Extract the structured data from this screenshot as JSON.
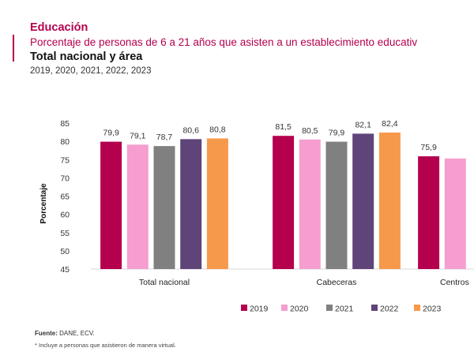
{
  "header": {
    "section": "Educación",
    "title": "Porcentaje de personas de 6 a 21 años que asisten a un establecimiento educativ",
    "subtitle": "Total nacional y área",
    "years": "2019, 2020, 2021, 2022, 2023"
  },
  "chart_data": {
    "type": "bar",
    "ylabel": "Porcentaje",
    "ylim": [
      45,
      85
    ],
    "yticks": [
      "45",
      "50",
      "55",
      "60",
      "65",
      "70",
      "75",
      "80",
      "85"
    ],
    "grid": false,
    "legend_position": "bottom-right",
    "categories": [
      "Total nacional",
      "Cabeceras",
      "Centros"
    ],
    "series": [
      {
        "name": "2019",
        "color": "#b5004e",
        "values": [
          79.9,
          81.5,
          75.9
        ],
        "labels": [
          "79,9",
          "81,5",
          "75,9"
        ]
      },
      {
        "name": "2020",
        "color": "#f59ecf",
        "values": [
          79.1,
          80.5,
          75.3
        ],
        "labels": [
          "79,1",
          "80,5",
          null
        ]
      },
      {
        "name": "2021",
        "color": "#808080",
        "values": [
          78.7,
          79.9,
          null
        ],
        "labels": [
          "78,7",
          "79,9",
          null
        ]
      },
      {
        "name": "2022",
        "color": "#5e4479",
        "values": [
          80.6,
          82.1,
          null
        ],
        "labels": [
          "80,6",
          "82,1",
          null
        ]
      },
      {
        "name": "2023",
        "color": "#f7994a",
        "values": [
          80.8,
          82.4,
          null
        ],
        "labels": [
          "80,8",
          "82,4",
          null
        ]
      }
    ]
  },
  "footer": {
    "source_label": "Fuente:",
    "source": " DANE, ECV.",
    "note": "* Incluye a personas que asistieron de manera virtual."
  }
}
